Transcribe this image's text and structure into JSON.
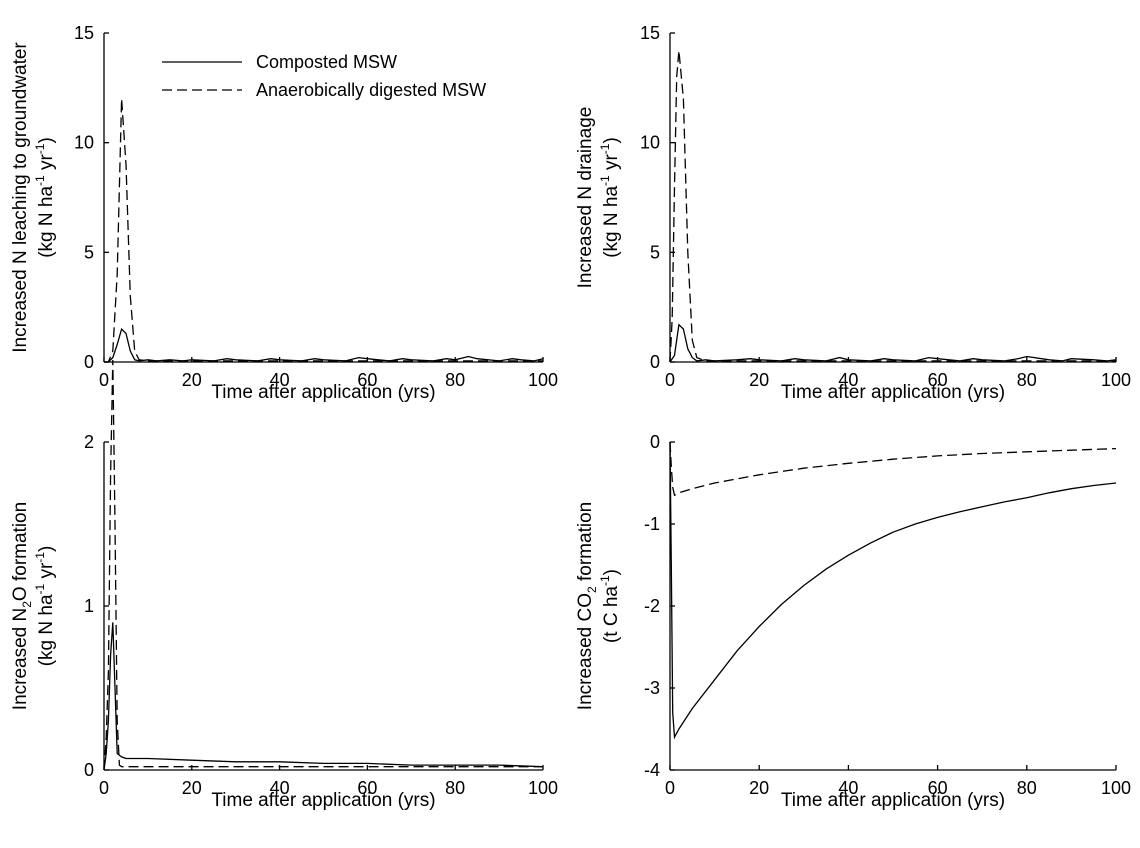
{
  "chart_data": [
    {
      "type": "line",
      "xlabel": "Time after application (yrs)",
      "ylabel": {
        "line1": "Increased N leaching to groundwater",
        "line2_pre": "(kg N ha",
        "exp1": "-1",
        "line2_mid": " yr",
        "exp2": "-1",
        "line2_post": ")"
      },
      "xlim": [
        0,
        100
      ],
      "ylim": [
        0,
        15
      ],
      "xticks": [
        "0",
        "20",
        "40",
        "60",
        "80",
        "100"
      ],
      "yticks": [
        "0",
        "5",
        "10",
        "15"
      ],
      "legend": {
        "position": "top-left",
        "entries": [
          "Composted MSW",
          "Anaerobically digested MSW"
        ]
      },
      "series": [
        {
          "name": "Composted MSW",
          "style": "solid",
          "x": [
            0,
            1,
            2,
            3,
            4,
            5,
            6,
            7,
            8,
            10,
            12,
            15,
            18,
            20,
            25,
            28,
            30,
            35,
            38,
            40,
            45,
            48,
            50,
            55,
            58,
            60,
            65,
            68,
            70,
            75,
            78,
            80,
            83,
            85,
            90,
            93,
            95,
            98,
            100
          ],
          "y": [
            0,
            0,
            0.2,
            0.8,
            1.5,
            1.3,
            0.5,
            0.1,
            0.05,
            0.1,
            0.05,
            0.1,
            0.05,
            0.1,
            0.05,
            0.15,
            0.1,
            0.05,
            0.15,
            0.1,
            0.05,
            0.15,
            0.1,
            0.05,
            0.2,
            0.15,
            0.05,
            0.15,
            0.1,
            0.05,
            0.15,
            0.1,
            0.25,
            0.15,
            0.05,
            0.15,
            0.1,
            0.05,
            0.15
          ]
        },
        {
          "name": "Anaerobically digested MSW",
          "style": "dashed",
          "x": [
            0,
            1,
            2,
            3,
            4,
            5,
            6,
            7,
            8,
            10,
            15,
            20,
            25,
            30,
            40,
            50,
            60,
            70,
            80,
            90,
            100
          ],
          "y": [
            0,
            0,
            0.5,
            4,
            12,
            9,
            3,
            0.5,
            0.1,
            0.05,
            0.05,
            0.05,
            0.05,
            0.05,
            0.05,
            0.05,
            0.05,
            0.05,
            0.05,
            0.05,
            0.05
          ]
        }
      ]
    },
    {
      "type": "line",
      "xlabel": "Time after application (yrs)",
      "ylabel": {
        "line1": "Increased N drainage",
        "line2_pre": "(kg N ha",
        "exp1": "-1",
        "line2_mid": " yr",
        "exp2": "-1",
        "line2_post": ")"
      },
      "xlim": [
        0,
        100
      ],
      "ylim": [
        0,
        15
      ],
      "xticks": [
        "0",
        "20",
        "40",
        "60",
        "80",
        "100"
      ],
      "yticks": [
        "0",
        "5",
        "10",
        "15"
      ],
      "series": [
        {
          "name": "Composted MSW",
          "style": "solid",
          "x": [
            0,
            1,
            2,
            3,
            4,
            5,
            6,
            8,
            10,
            15,
            18,
            20,
            25,
            28,
            30,
            35,
            38,
            40,
            45,
            48,
            50,
            55,
            58,
            60,
            65,
            68,
            70,
            75,
            78,
            80,
            85,
            88,
            90,
            95,
            98,
            100
          ],
          "y": [
            0,
            0.3,
            1.7,
            1.5,
            0.6,
            0.2,
            0.05,
            0.1,
            0.05,
            0.1,
            0.15,
            0.1,
            0.05,
            0.15,
            0.1,
            0.05,
            0.2,
            0.1,
            0.05,
            0.15,
            0.1,
            0.05,
            0.2,
            0.15,
            0.05,
            0.15,
            0.1,
            0.05,
            0.15,
            0.25,
            0.1,
            0.05,
            0.15,
            0.1,
            0.05,
            0.1
          ]
        },
        {
          "name": "Anaerobically digested MSW",
          "style": "dashed",
          "x": [
            0,
            0.5,
            1,
            1.5,
            2,
            3,
            4,
            5,
            6,
            8,
            10,
            20,
            30,
            40,
            50,
            60,
            70,
            80,
            90,
            100
          ],
          "y": [
            0,
            2,
            8,
            13,
            14.2,
            12,
            5,
            1,
            0.2,
            0.05,
            0.05,
            0.05,
            0.05,
            0.05,
            0.05,
            0.05,
            0.05,
            0.05,
            0.05,
            0.05
          ]
        }
      ]
    },
    {
      "type": "line",
      "xlabel": "Time after application (yrs)",
      "ylabel": {
        "line1_pre": "Increased N",
        "sub": "2",
        "line1_post": "O formation",
        "line2_pre": "(kg N ha",
        "exp1": "-1",
        "line2_mid": " yr",
        "exp2": "-1",
        "line2_post": ")"
      },
      "xlim": [
        0,
        100
      ],
      "ylim": [
        0,
        2
      ],
      "xticks": [
        "0",
        "20",
        "40",
        "60",
        "80",
        "100"
      ],
      "yticks": [
        "0",
        "1",
        "2"
      ],
      "series": [
        {
          "name": "Composted MSW",
          "style": "solid",
          "x": [
            0,
            0.5,
            1,
            1.5,
            2,
            2.5,
            3,
            4,
            5,
            10,
            20,
            30,
            40,
            50,
            60,
            70,
            80,
            90,
            100
          ],
          "y": [
            0,
            0.1,
            0.3,
            0.7,
            0.9,
            0.5,
            0.1,
            0.08,
            0.07,
            0.07,
            0.06,
            0.05,
            0.05,
            0.04,
            0.04,
            0.03,
            0.03,
            0.03,
            0.02
          ]
        },
        {
          "name": "Anaerobically digested MSW",
          "style": "dashed",
          "x": [
            0,
            0.5,
            1,
            1.5,
            2,
            2.5,
            3,
            3.5,
            4,
            10,
            20,
            30,
            40,
            50,
            60,
            70,
            80,
            90,
            100
          ],
          "y": [
            0,
            0.2,
            0.6,
            1.8,
            2.5,
            1.5,
            0.3,
            0.03,
            0.02,
            0.02,
            0.02,
            0.02,
            0.02,
            0.02,
            0.02,
            0.02,
            0.02,
            0.02,
            0.02
          ]
        }
      ]
    },
    {
      "type": "line",
      "xlabel": "Time after application (yrs)",
      "ylabel": {
        "line1_pre": "Increased CO",
        "sub": "2",
        "line1_post": " formation",
        "line2_pre": "(t C ha",
        "exp1": "-1",
        "line2_post": ")"
      },
      "xlim": [
        0,
        100
      ],
      "ylim": [
        -4,
        0
      ],
      "xticks": [
        "0",
        "20",
        "40",
        "60",
        "80",
        "100"
      ],
      "yticks": [
        "-4",
        "-3",
        "-2",
        "-1",
        "0"
      ],
      "series": [
        {
          "name": "Composted MSW",
          "style": "solid",
          "x": [
            0,
            0.3,
            0.6,
            1,
            2,
            5,
            10,
            15,
            20,
            25,
            30,
            35,
            40,
            45,
            50,
            55,
            60,
            65,
            70,
            75,
            78,
            80,
            85,
            90,
            95,
            100
          ],
          "y": [
            0,
            -1.5,
            -3.3,
            -3.6,
            -3.5,
            -3.25,
            -2.9,
            -2.55,
            -2.25,
            -1.98,
            -1.75,
            -1.55,
            -1.38,
            -1.23,
            -1.1,
            -1.0,
            -0.92,
            -0.85,
            -0.79,
            -0.73,
            -0.7,
            -0.68,
            -0.62,
            -0.57,
            -0.53,
            -0.5
          ]
        },
        {
          "name": "Anaerobically digested MSW",
          "style": "dashed",
          "x": [
            0,
            0.3,
            0.6,
            1,
            2,
            5,
            10,
            20,
            30,
            40,
            50,
            60,
            70,
            80,
            90,
            100
          ],
          "y": [
            0,
            -0.3,
            -0.55,
            -0.65,
            -0.62,
            -0.57,
            -0.5,
            -0.4,
            -0.32,
            -0.26,
            -0.21,
            -0.17,
            -0.14,
            -0.12,
            -0.1,
            -0.08
          ]
        }
      ]
    }
  ]
}
